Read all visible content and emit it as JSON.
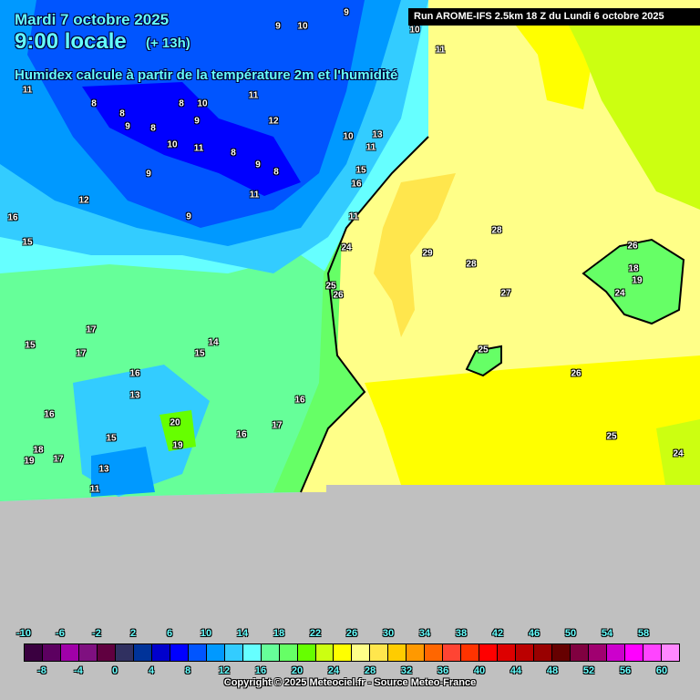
{
  "header": {
    "date": "Mardi 7 octobre 2025",
    "time": "9:00 locale",
    "lead": "(+ 13h)",
    "description": "Humidex calcule à partir de la température 2m et l'humidité",
    "run": "Run AROME-IFS 2.5km 18 Z du Lundi 6 octobre 2025"
  },
  "map": {
    "colors": {
      "sea": "#ffff88",
      "sea_warm": "#ffe64d",
      "sea_yellow": "#ffff00",
      "outside": "#c0c0c0"
    },
    "labels": [
      "9",
      "10",
      "9",
      "10",
      "11",
      "11",
      "8",
      "8",
      "9",
      "8",
      "8",
      "10",
      "9",
      "12",
      "11",
      "10",
      "11",
      "8",
      "9",
      "8",
      "9",
      "10",
      "13",
      "11",
      "15",
      "16",
      "11",
      "12",
      "9",
      "16",
      "15",
      "11",
      "24",
      "29",
      "28",
      "28",
      "27",
      "26",
      "18",
      "19",
      "24",
      "25",
      "26",
      "17",
      "15",
      "17",
      "14",
      "15",
      "16",
      "13",
      "16",
      "20",
      "19",
      "15",
      "18",
      "19",
      "17",
      "13",
      "11",
      "16",
      "17",
      "16",
      "25",
      "26",
      "25",
      "24"
    ]
  },
  "legend": {
    "top_ticks": [
      "-10",
      "-6",
      "-2",
      "2",
      "6",
      "10",
      "14",
      "18",
      "22",
      "26",
      "30",
      "34",
      "38",
      "42",
      "46",
      "50",
      "54",
      "58"
    ],
    "bottom_ticks": [
      "-8",
      "-4",
      "0",
      "4",
      "8",
      "12",
      "16",
      "20",
      "24",
      "28",
      "32",
      "36",
      "40",
      "44",
      "48",
      "52",
      "56",
      "60"
    ],
    "colors": [
      "#3a0040",
      "#5c0060",
      "#a000a8",
      "#7f1080",
      "#600040",
      "#303060",
      "#003399",
      "#0000cc",
      "#0000ff",
      "#0055ff",
      "#0099ff",
      "#33ccff",
      "#66ffff",
      "#66ff99",
      "#66ff66",
      "#66ff00",
      "#ccff11",
      "#ffff00",
      "#ffff88",
      "#ffe64d",
      "#ffcc00",
      "#ff9900",
      "#ff6600",
      "#ff4433",
      "#ff3300",
      "#ff0000",
      "#dd0000",
      "#bb0000",
      "#990000",
      "#660000",
      "#800040",
      "#a00070",
      "#cc00cc",
      "#ff00ff",
      "#ff44ff",
      "#ff88ff"
    ]
  },
  "copyright": "Copyright © 2025 Meteociel.fr - Source Meteo-France"
}
